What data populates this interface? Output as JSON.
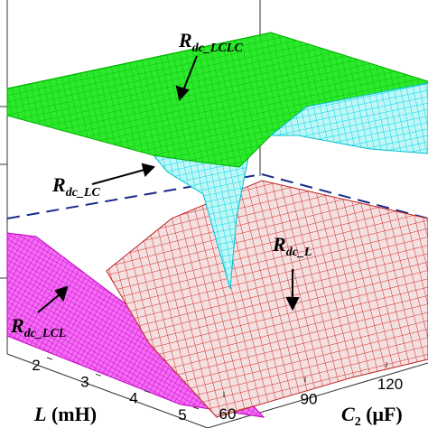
{
  "chart_data": {
    "type": "surface3d",
    "x_label": {
      "symbol": "L",
      "unit": "(mH)"
    },
    "y_label": {
      "symbol": "C",
      "subscript": "2",
      "unit": "(μF)"
    },
    "xticks": [
      2,
      3,
      4,
      5
    ],
    "yticks": [
      60,
      90,
      120
    ],
    "annotations": [
      {
        "symbol": "R",
        "subscript": "dc_LCLC"
      },
      {
        "symbol": "R",
        "subscript": "dc_LC"
      },
      {
        "symbol": "R",
        "subscript": "dc_L"
      },
      {
        "symbol": "R",
        "subscript": "dc_LCL"
      }
    ]
  }
}
